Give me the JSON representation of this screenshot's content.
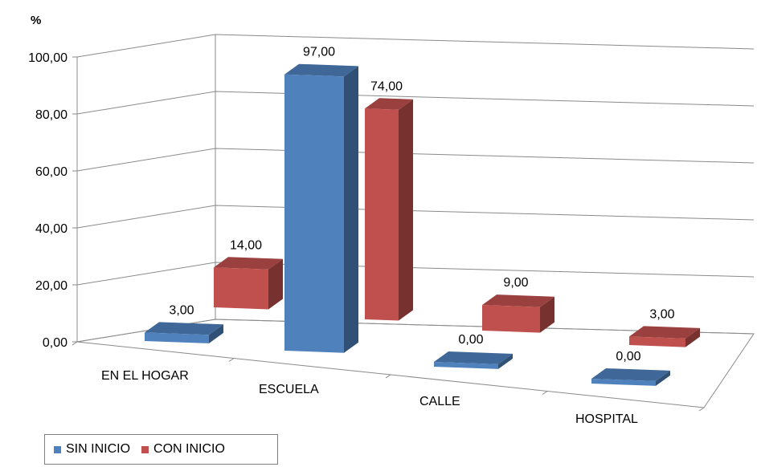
{
  "chart_data": {
    "type": "bar",
    "style": "3d-clustered",
    "ylabel": "%",
    "ylim": [
      0,
      100
    ],
    "y_ticks": [
      "0,00",
      "20,00",
      "40,00",
      "60,00",
      "80,00",
      "100,00"
    ],
    "categories": [
      "EN EL HOGAR",
      "ESCUELA",
      "CALLE",
      "HOSPITAL"
    ],
    "series": [
      {
        "name": "SIN INICIO",
        "color": "#4F81BD",
        "values": [
          3,
          97,
          0,
          0
        ],
        "labels": [
          "3,00",
          "97,00",
          "0,00",
          "0,00"
        ]
      },
      {
        "name": "CON INICIO",
        "color": "#C0504D",
        "values": [
          14,
          74,
          9,
          3
        ],
        "labels": [
          "14,00",
          "74,00",
          "9,00",
          "3,00"
        ]
      }
    ],
    "grid": true,
    "legend_position": "bottom-left"
  }
}
